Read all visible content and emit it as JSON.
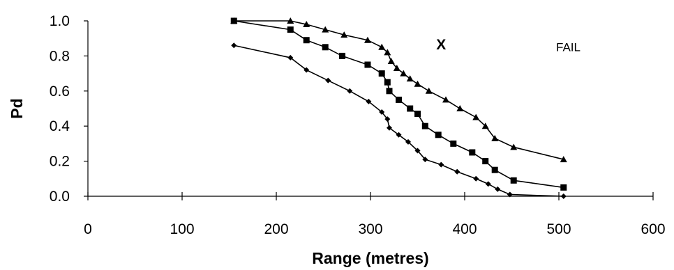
{
  "chart_data": {
    "type": "line",
    "title": "",
    "xlabel": "Range (metres)",
    "ylabel": "Pd",
    "xlim": [
      0,
      600
    ],
    "ylim": [
      0,
      1.0
    ],
    "x_ticks": [
      0,
      100,
      200,
      300,
      400,
      500,
      600
    ],
    "x_tick_labels": [
      "0",
      "100",
      "200",
      "300",
      "400",
      "500",
      "600"
    ],
    "y_ticks": [
      0,
      0.2,
      0.4,
      0.6,
      0.8,
      1.0
    ],
    "y_tick_labels": [
      "0.0",
      "0.2",
      "0.4",
      "0.6",
      "0.8",
      "1.0"
    ],
    "grid": false,
    "legend": "none",
    "annotations": [
      {
        "text": "X",
        "x": 375,
        "y": 0.87
      },
      {
        "text": "FAIL",
        "x": 510,
        "y": 0.86
      }
    ],
    "series": [
      {
        "marker": "triangle",
        "color": "#000000",
        "x": [
          155,
          215,
          232,
          252,
          272,
          297,
          312,
          318,
          322,
          328,
          335,
          342,
          350,
          362,
          380,
          395,
          412,
          422,
          432,
          452,
          505
        ],
        "y": [
          1.0,
          1.0,
          0.98,
          0.95,
          0.92,
          0.89,
          0.85,
          0.82,
          0.77,
          0.73,
          0.7,
          0.67,
          0.64,
          0.6,
          0.55,
          0.5,
          0.45,
          0.4,
          0.33,
          0.28,
          0.21
        ]
      },
      {
        "marker": "square",
        "color": "#000000",
        "x": [
          155,
          215,
          232,
          252,
          270,
          297,
          312,
          318,
          320,
          330,
          342,
          350,
          358,
          372,
          388,
          408,
          422,
          432,
          452,
          505
        ],
        "y": [
          1.0,
          0.95,
          0.89,
          0.85,
          0.8,
          0.75,
          0.7,
          0.65,
          0.6,
          0.55,
          0.5,
          0.47,
          0.4,
          0.35,
          0.3,
          0.25,
          0.2,
          0.15,
          0.09,
          0.05
        ]
      },
      {
        "marker": "diamond",
        "color": "#000000",
        "x": [
          155,
          215,
          232,
          255,
          278,
          298,
          312,
          318,
          320,
          330,
          340,
          350,
          358,
          375,
          392,
          412,
          425,
          435,
          448,
          505
        ],
        "y": [
          0.86,
          0.79,
          0.72,
          0.66,
          0.6,
          0.54,
          0.48,
          0.44,
          0.39,
          0.35,
          0.31,
          0.26,
          0.21,
          0.18,
          0.14,
          0.1,
          0.07,
          0.04,
          0.01,
          0.0
        ]
      }
    ]
  }
}
